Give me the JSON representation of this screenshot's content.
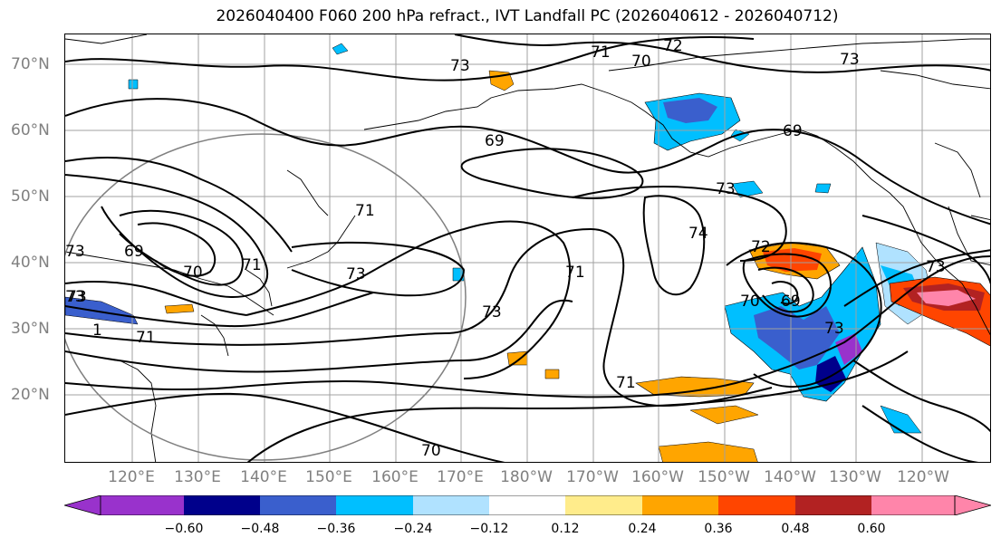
{
  "title": "2026040400 F060 200 hPa refract., IVT Landfall PC (2026040612 - 2026040712)",
  "lat_labels": [
    "70°N",
    "60°N",
    "50°N",
    "40°N",
    "30°N",
    "20°N"
  ],
  "lon_labels": [
    "120°E",
    "130°E",
    "140°E",
    "150°E",
    "160°E",
    "170°E",
    "180°W",
    "170°W",
    "160°W",
    "150°W",
    "140°W",
    "130°W",
    "120°W"
  ],
  "colorbar": {
    "ticks": [
      "−0.60",
      "−0.48",
      "−0.36",
      "−0.24",
      "−0.12",
      "0.12",
      "0.24",
      "0.36",
      "0.48",
      "0.60"
    ],
    "colors": [
      "#9932cc",
      "#00008b",
      "#3a5fcd",
      "#00bfff",
      "#b0e2ff",
      "#ffffff",
      "#ffec8b",
      "#ffa500",
      "#ff4500",
      "#b22222",
      "#ff85aa"
    ]
  },
  "contour_labels": [
    "71",
    "72",
    "70",
    "73",
    "73",
    "69",
    "69",
    "73",
    "73",
    "74",
    "71",
    "72",
    "70",
    "69",
    "73",
    "73",
    "73",
    "73",
    "71",
    "71",
    "70",
    "73",
    "69",
    "70",
    "71",
    "73",
    "1",
    "71"
  ]
}
